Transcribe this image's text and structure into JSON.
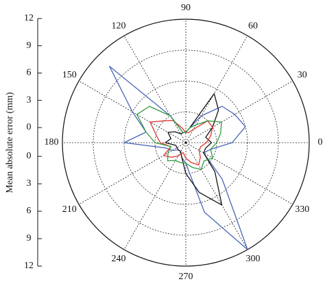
{
  "chart_data": {
    "type": "polar",
    "y_label": "Mean absolute error (mm)",
    "rlim": [
      0,
      12
    ],
    "rticks": [
      0,
      3,
      6,
      9,
      12
    ],
    "thetaticks": [
      0,
      30,
      60,
      90,
      120,
      150,
      180,
      210,
      240,
      270,
      300,
      330
    ],
    "grid": true,
    "theta": [
      0,
      15,
      30,
      45,
      60,
      75,
      90,
      105,
      120,
      135,
      150,
      165,
      180,
      195,
      210,
      225,
      240,
      255,
      270,
      285,
      300,
      315,
      330,
      345
    ],
    "series": [
      {
        "color": "#4a66b8",
        "values": [
          4.5,
          6,
          5.5,
          5,
          3,
          1.5,
          1,
          1,
          3,
          10.5,
          6,
          4,
          6,
          2,
          1.5,
          1,
          1,
          1.5,
          2,
          7,
          12,
          5,
          2,
          2.5
        ]
      },
      {
        "color": "#111111",
        "values": [
          2.5,
          2,
          3,
          4.5,
          5.5,
          1.5,
          1,
          1,
          1,
          1.5,
          2,
          1.5,
          2,
          1,
          1,
          1,
          1,
          1.5,
          3,
          5,
          7,
          4,
          2,
          2
        ]
      },
      {
        "color": "#e0332e",
        "values": [
          2,
          2.5,
          3,
          3,
          1.5,
          1,
          1,
          1.5,
          2.5,
          3,
          4,
          3,
          2.5,
          1.5,
          2.5,
          2,
          1.5,
          1,
          1.5,
          2,
          2.5,
          2,
          1.5,
          1.5
        ]
      },
      {
        "color": "#2e9a3c",
        "values": [
          3,
          3.5,
          4,
          3,
          2,
          1.5,
          1,
          1,
          3,
          5,
          5.5,
          4,
          3,
          1.5,
          2,
          2.5,
          2,
          2,
          2,
          2.5,
          3,
          2.5,
          3,
          2.5
        ]
      }
    ]
  }
}
